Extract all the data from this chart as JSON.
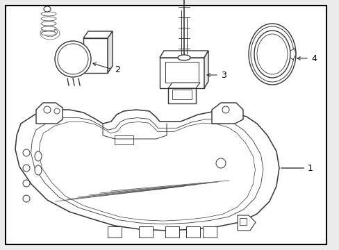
{
  "background_color": "#ebebeb",
  "border_color": "#000000",
  "line_color": "#333333",
  "label_color": "#000000",
  "figsize": [
    4.89,
    3.6
  ],
  "dpi": 100
}
